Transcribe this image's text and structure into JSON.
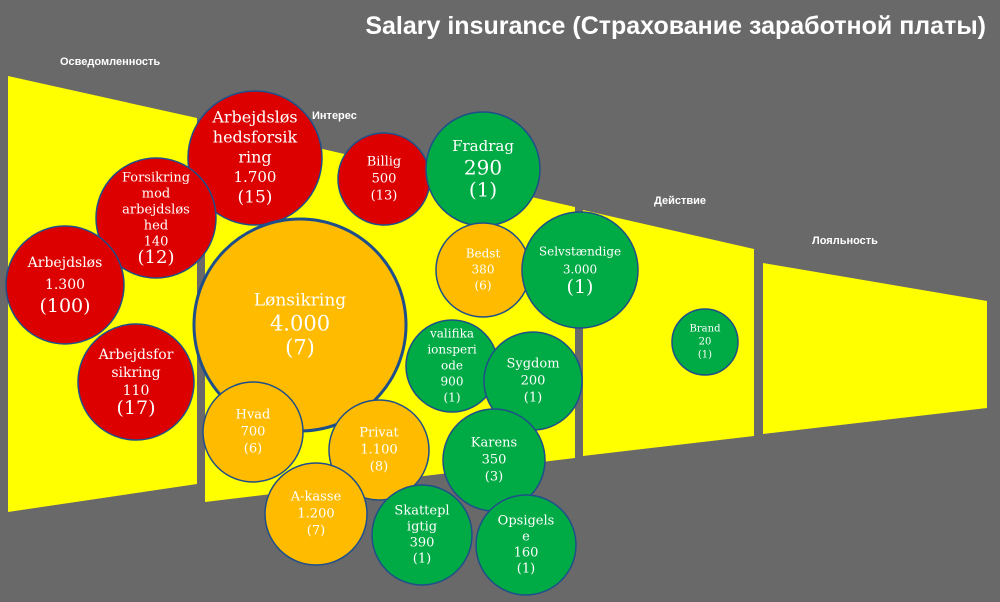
{
  "title": "Salary insurance (Страхование заработной платы)",
  "stages": {
    "awareness": "Осведомленность",
    "interest": "Интерес",
    "action": "Действие",
    "loyalty": "Лояльность"
  },
  "colors": {
    "background": "#696969",
    "funnel": "#ffff00",
    "red": "#dd0000",
    "orange": "#ffbb00",
    "green": "#00aa44",
    "bubble_border": "#1f4f8a"
  },
  "bubbles": [
    {
      "name": "arbejdsloshedsforsikring",
      "lines": [
        "Arbejdsløs",
        "hedsforsik",
        "ring",
        "1.700",
        "(15)"
      ],
      "color": "red"
    },
    {
      "name": "forsikring-mod-arbejdsloshed",
      "lines": [
        "Forsikring",
        "mod",
        "arbejdsløs",
        "hed",
        "140",
        "(12)"
      ],
      "color": "red"
    },
    {
      "name": "arbejdslos",
      "lines": [
        "Arbejdsløs",
        "1.300",
        "(100)"
      ],
      "color": "red"
    },
    {
      "name": "arbejdsforsikring",
      "lines": [
        "Arbejdsfor",
        "sikring",
        "110",
        "(17)"
      ],
      "color": "red"
    },
    {
      "name": "billig",
      "lines": [
        "Billig",
        "500",
        "(13)"
      ],
      "color": "red"
    },
    {
      "name": "lonsikring",
      "lines": [
        "Lønsikring",
        "4.000",
        "(7)"
      ],
      "color": "orange"
    },
    {
      "name": "fradrag",
      "lines": [
        "Fradrag",
        "290",
        "(1)"
      ],
      "color": "green"
    },
    {
      "name": "bedst",
      "lines": [
        "Bedst",
        "380",
        "(6)"
      ],
      "color": "orange"
    },
    {
      "name": "selvstaendige",
      "lines": [
        "Selvstændige",
        "3.000",
        "(1)"
      ],
      "color": "green"
    },
    {
      "name": "kvalifikationsperiode",
      "lines": [
        "valifika",
        "ionsperi",
        "ode",
        "900",
        "(1)"
      ],
      "color": "green"
    },
    {
      "name": "sygdom",
      "lines": [
        "Sygdom",
        "200",
        "(1)"
      ],
      "color": "green"
    },
    {
      "name": "hvad",
      "lines": [
        "Hvad",
        "700",
        "(6)"
      ],
      "color": "orange"
    },
    {
      "name": "privat",
      "lines": [
        "Privat",
        "1.100",
        "(8)"
      ],
      "color": "orange"
    },
    {
      "name": "karens",
      "lines": [
        "Karens",
        "350",
        "(3)"
      ],
      "color": "green"
    },
    {
      "name": "a-kasse",
      "lines": [
        "A-kasse",
        "1.200",
        "(7)"
      ],
      "color": "orange"
    },
    {
      "name": "skattepligtig",
      "lines": [
        "Skattepl",
        "igtig",
        "390",
        "(1)"
      ],
      "color": "green"
    },
    {
      "name": "opsigelse",
      "lines": [
        "Opsigels",
        "e",
        "160",
        "(1)"
      ],
      "color": "green"
    },
    {
      "name": "brand",
      "lines": [
        "Brand",
        "20",
        "(1)"
      ],
      "color": "green"
    }
  ]
}
